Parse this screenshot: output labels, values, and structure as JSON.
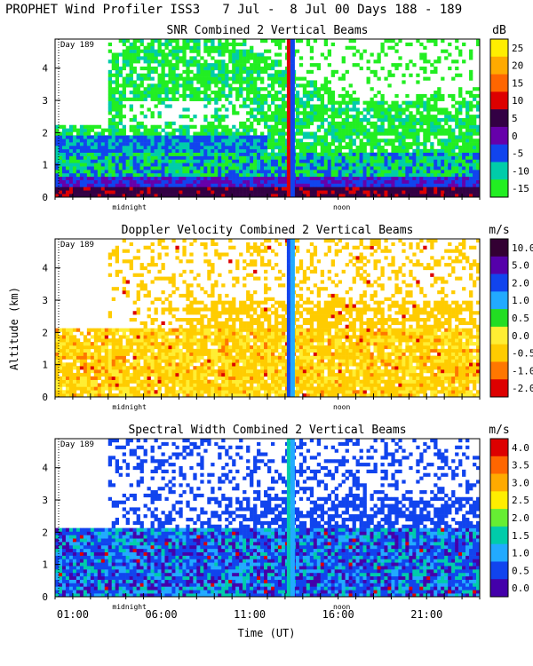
{
  "header": {
    "title": "PROPHET Wind Profiler ISS3   7 Jul -  8 Jul 00 Days 188 - 189"
  },
  "axes": {
    "ylabel": "Altitude (km)",
    "xlabel": "Time (UT)",
    "yticks": [
      "0",
      "1",
      "2",
      "3",
      "4"
    ],
    "xticks": [
      "01:00",
      "06:00",
      "11:00",
      "16:00",
      "21:00"
    ],
    "xtick_hours": [
      1,
      6,
      11,
      16,
      21
    ],
    "xlim_hours": [
      0,
      24
    ],
    "ylim_km": [
      0,
      4.9
    ],
    "midnight_label": "midnight",
    "noon_label": "noon",
    "day_label": "Day 189"
  },
  "colors": {
    "scale": [
      "#22dd22",
      "#66ee33",
      "#00ccaa",
      "#22aaff",
      "#1144ee",
      "#2222aa",
      "#550099",
      "#330044",
      "#dd0000",
      "#ff6600",
      "#ffaa00",
      "#ffdd22"
    ]
  },
  "chart_data": [
    {
      "type": "heatmap",
      "title": "SNR Combined 2 Vertical Beams",
      "unit": "dB",
      "colorbar_ticks": [
        "25",
        "20",
        "15",
        "10",
        "5",
        "0",
        "-5",
        "-10",
        "-15"
      ],
      "colorbar_colors": [
        "#ffee00",
        "#ffaa00",
        "#ff6600",
        "#dd0000",
        "#330044",
        "#6600aa",
        "#1144ee",
        "#00ccaa",
        "#22ee22"
      ],
      "ylim": [
        0,
        4.9
      ],
      "xlim": [
        0,
        24
      ]
    },
    {
      "type": "heatmap",
      "title": "Doppler Velocity Combined 2 Vertical Beams",
      "unit": "m/s",
      "colorbar_ticks": [
        "10.0",
        "5.0",
        "2.0",
        "1.0",
        "0.5",
        "0.0",
        "-0.5",
        "-1.0",
        "-2.0"
      ],
      "colorbar_colors": [
        "#330033",
        "#5500aa",
        "#1144ee",
        "#22aaff",
        "#22dd22",
        "#ffee33",
        "#ffcc00",
        "#ff7700",
        "#dd0000"
      ],
      "ylim": [
        0,
        4.9
      ],
      "xlim": [
        0,
        24
      ]
    },
    {
      "type": "heatmap",
      "title": "Spectral Width Combined 2 Vertical Beams",
      "unit": "m/s",
      "colorbar_ticks": [
        "4.0",
        "3.5",
        "3.0",
        "2.5",
        "2.0",
        "1.5",
        "1.0",
        "0.5",
        "0.0"
      ],
      "colorbar_colors": [
        "#dd0000",
        "#ff6600",
        "#ffaa00",
        "#ffee00",
        "#66ee33",
        "#00ccaa",
        "#22aaff",
        "#1144ee",
        "#4400aa"
      ],
      "ylim": [
        0,
        4.9
      ],
      "xlim": [
        0,
        24
      ]
    }
  ]
}
